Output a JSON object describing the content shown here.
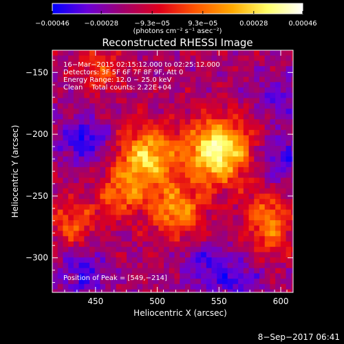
{
  "chart_data": {
    "type": "heatmap",
    "title": "Reconstructed RHESSI Image",
    "xlabel": "Heliocentric X (arcsec)",
    "ylabel": "Heliocentric Y (arcsec)",
    "xlim": [
      415,
      610
    ],
    "ylim": [
      -328,
      -132
    ],
    "xticks": [
      450,
      500,
      550,
      600
    ],
    "yticks": [
      -150,
      -200,
      -250,
      -300
    ],
    "colorbar": {
      "min": -0.00046,
      "max": 0.00046,
      "ticks": [
        {
          "value": -0.00046,
          "label": "−0.00046"
        },
        {
          "value": -0.00028,
          "label": "−0.00028"
        },
        {
          "value": -9.3e-05,
          "label": "−9.3e−05"
        },
        {
          "value": 9.3e-05,
          "label": "9.3e−05"
        },
        {
          "value": 0.00028,
          "label": "0.00028"
        },
        {
          "value": 0.00046,
          "label": "0.00046"
        }
      ],
      "units_label": "(photons cm⁻² s⁻¹ asec⁻²)",
      "colors": [
        "#0000ff",
        "#6a00d8",
        "#a0006e",
        "#e0001a",
        "#ff5500",
        "#ffaa00",
        "#ffff6a",
        "#ffffff"
      ]
    },
    "annotations": {
      "time_range": "16−Mar−2015 02:15:12.000 to 02:25:12.000",
      "detectors": "Detectors: 3F 5F 6F 7F 8F 9F, Att 0",
      "energy_range": "Energy Range: 12.0 − 25.0 keV",
      "method_counts": "Clean    Total counts: 2.22E+04",
      "peak_position": "Position of Peak = [549,−214]"
    },
    "peak": {
      "x": 549,
      "y": -214
    },
    "bright_sources": [
      {
        "x": 549,
        "y": -214,
        "intensity": 1.0
      },
      {
        "x": 492,
        "y": -219,
        "intensity": 0.78
      },
      {
        "x": 515,
        "y": -262,
        "intensity": 0.62
      },
      {
        "x": 471,
        "y": -247,
        "intensity": 0.45
      },
      {
        "x": 432,
        "y": -272,
        "intensity": 0.42
      },
      {
        "x": 455,
        "y": -148,
        "intensity": 0.35
      },
      {
        "x": 588,
        "y": -262,
        "intensity": 0.38
      },
      {
        "x": 592,
        "y": -282,
        "intensity": 0.34
      }
    ],
    "faint_regions": [
      {
        "x": 440,
        "y": -205,
        "intensity": -0.7
      },
      {
        "x": 440,
        "y": -312,
        "intensity": -0.6
      },
      {
        "x": 600,
        "y": -222,
        "intensity": -0.55
      },
      {
        "x": 565,
        "y": -320,
        "intensity": -0.5
      },
      {
        "x": 538,
        "y": -305,
        "intensity": -0.45
      },
      {
        "x": 600,
        "y": -170,
        "intensity": -0.4
      }
    ],
    "timestamp": "8−Sep−2017 06:41"
  }
}
